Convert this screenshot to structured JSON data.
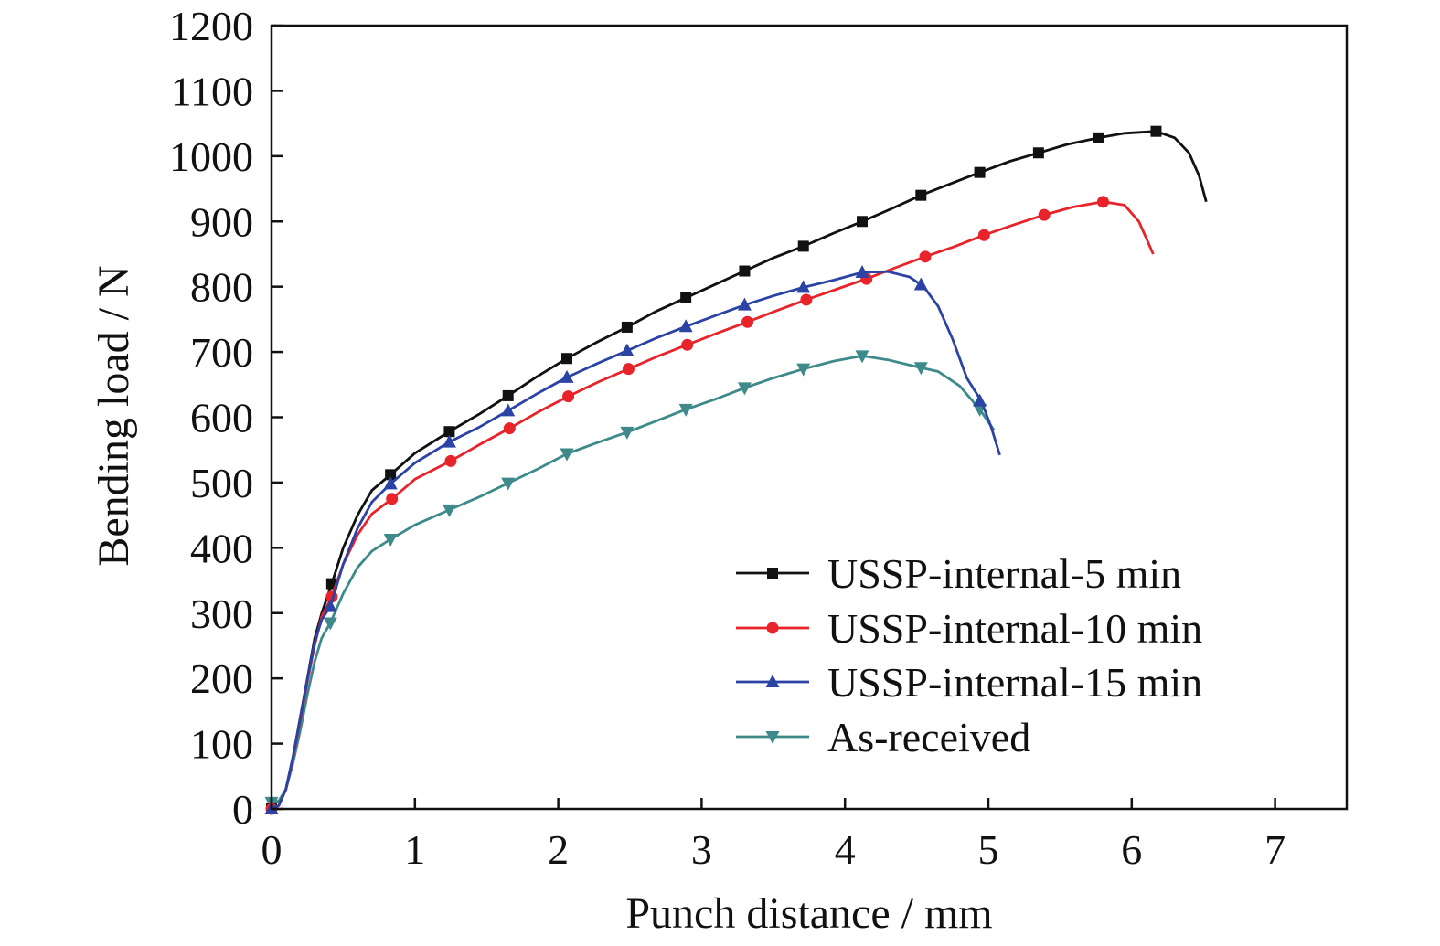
{
  "chart_data": {
    "type": "line",
    "xlabel": "Punch distance / mm",
    "ylabel": "Bending load / N",
    "xlim": [
      0,
      7.5
    ],
    "ylim": [
      0,
      1200
    ],
    "xticks": [
      0,
      1,
      2,
      3,
      4,
      5,
      6,
      7
    ],
    "yticks": [
      0,
      100,
      200,
      300,
      400,
      500,
      600,
      700,
      800,
      900,
      1000,
      1100,
      1200
    ],
    "grid": false,
    "legend_position": "bottom-right",
    "series": [
      {
        "name": "USSP-internal-5 min",
        "color": "#111111",
        "marker": "square",
        "points": [
          [
            0,
            0
          ],
          [
            0.05,
            5
          ],
          [
            0.1,
            30
          ],
          [
            0.15,
            80
          ],
          [
            0.2,
            140
          ],
          [
            0.25,
            200
          ],
          [
            0.3,
            260
          ],
          [
            0.35,
            300
          ],
          [
            0.42,
            345
          ],
          [
            0.5,
            400
          ],
          [
            0.6,
            450
          ],
          [
            0.7,
            488
          ],
          [
            0.83,
            512
          ],
          [
            1.0,
            545
          ],
          [
            1.24,
            578
          ],
          [
            1.45,
            605
          ],
          [
            1.65,
            633
          ],
          [
            1.85,
            662
          ],
          [
            2.06,
            690
          ],
          [
            2.27,
            715
          ],
          [
            2.48,
            738
          ],
          [
            2.68,
            762
          ],
          [
            2.89,
            783
          ],
          [
            3.1,
            804
          ],
          [
            3.3,
            824
          ],
          [
            3.5,
            844
          ],
          [
            3.71,
            862
          ],
          [
            3.92,
            882
          ],
          [
            4.12,
            900
          ],
          [
            4.33,
            920
          ],
          [
            4.53,
            940
          ],
          [
            4.74,
            958
          ],
          [
            4.94,
            975
          ],
          [
            5.15,
            992
          ],
          [
            5.35,
            1005
          ],
          [
            5.55,
            1018
          ],
          [
            5.77,
            1028
          ],
          [
            5.95,
            1035
          ],
          [
            6.17,
            1038
          ],
          [
            6.3,
            1028
          ],
          [
            6.4,
            1005
          ],
          [
            6.47,
            970
          ],
          [
            6.52,
            930
          ]
        ],
        "markers": [
          [
            0,
            0
          ],
          [
            0.42,
            345
          ],
          [
            0.83,
            512
          ],
          [
            1.24,
            578
          ],
          [
            1.65,
            633
          ],
          [
            2.06,
            690
          ],
          [
            2.48,
            738
          ],
          [
            2.89,
            783
          ],
          [
            3.3,
            824
          ],
          [
            3.71,
            862
          ],
          [
            4.12,
            900
          ],
          [
            4.53,
            940
          ],
          [
            4.94,
            975
          ],
          [
            5.35,
            1005
          ],
          [
            5.77,
            1028
          ],
          [
            6.17,
            1038
          ]
        ]
      },
      {
        "name": "USSP-internal-10 min",
        "color": "#e8232a",
        "marker": "circle",
        "points": [
          [
            0,
            0
          ],
          [
            0.05,
            5
          ],
          [
            0.1,
            30
          ],
          [
            0.15,
            78
          ],
          [
            0.2,
            135
          ],
          [
            0.25,
            195
          ],
          [
            0.3,
            250
          ],
          [
            0.35,
            295
          ],
          [
            0.42,
            325
          ],
          [
            0.5,
            375
          ],
          [
            0.6,
            420
          ],
          [
            0.7,
            452
          ],
          [
            0.84,
            475
          ],
          [
            1.0,
            505
          ],
          [
            1.25,
            533
          ],
          [
            1.45,
            558
          ],
          [
            1.66,
            583
          ],
          [
            1.86,
            608
          ],
          [
            2.07,
            632
          ],
          [
            2.28,
            654
          ],
          [
            2.49,
            674
          ],
          [
            2.69,
            693
          ],
          [
            2.9,
            711
          ],
          [
            3.11,
            729
          ],
          [
            3.32,
            746
          ],
          [
            3.52,
            763
          ],
          [
            3.73,
            780
          ],
          [
            3.94,
            796
          ],
          [
            4.15,
            812
          ],
          [
            4.35,
            829
          ],
          [
            4.56,
            846
          ],
          [
            4.77,
            862
          ],
          [
            4.97,
            879
          ],
          [
            5.18,
            895
          ],
          [
            5.39,
            910
          ],
          [
            5.59,
            922
          ],
          [
            5.8,
            930
          ],
          [
            5.95,
            925
          ],
          [
            6.05,
            900
          ],
          [
            6.1,
            875
          ],
          [
            6.15,
            850
          ]
        ],
        "markers": [
          [
            0,
            0
          ],
          [
            0.42,
            325
          ],
          [
            0.84,
            475
          ],
          [
            1.25,
            533
          ],
          [
            1.66,
            583
          ],
          [
            2.07,
            632
          ],
          [
            2.49,
            674
          ],
          [
            2.9,
            711
          ],
          [
            3.32,
            746
          ],
          [
            3.73,
            780
          ],
          [
            4.15,
            812
          ],
          [
            4.56,
            846
          ],
          [
            4.97,
            879
          ],
          [
            5.39,
            910
          ],
          [
            5.8,
            930
          ]
        ]
      },
      {
        "name": "USSP-internal-15 min",
        "color": "#2c43a6",
        "marker": "triangle-up",
        "points": [
          [
            0,
            0
          ],
          [
            0.05,
            5
          ],
          [
            0.1,
            30
          ],
          [
            0.15,
            80
          ],
          [
            0.2,
            138
          ],
          [
            0.25,
            198
          ],
          [
            0.3,
            255
          ],
          [
            0.35,
            290
          ],
          [
            0.41,
            310
          ],
          [
            0.5,
            375
          ],
          [
            0.6,
            430
          ],
          [
            0.7,
            470
          ],
          [
            0.83,
            498
          ],
          [
            1.0,
            530
          ],
          [
            1.24,
            562
          ],
          [
            1.45,
            585
          ],
          [
            1.65,
            610
          ],
          [
            1.86,
            637
          ],
          [
            2.06,
            661
          ],
          [
            2.27,
            682
          ],
          [
            2.48,
            702
          ],
          [
            2.68,
            721
          ],
          [
            2.89,
            739
          ],
          [
            3.1,
            756
          ],
          [
            3.3,
            772
          ],
          [
            3.5,
            786
          ],
          [
            3.71,
            799
          ],
          [
            3.92,
            810
          ],
          [
            4.12,
            822
          ],
          [
            4.3,
            823
          ],
          [
            4.45,
            815
          ],
          [
            4.55,
            800
          ],
          [
            4.65,
            770
          ],
          [
            4.75,
            720
          ],
          [
            4.85,
            660
          ],
          [
            4.95,
            625
          ],
          [
            5.02,
            585
          ],
          [
            5.08,
            542
          ]
        ],
        "markers": [
          [
            0,
            0
          ],
          [
            0.41,
            310
          ],
          [
            0.83,
            498
          ],
          [
            1.24,
            562
          ],
          [
            1.65,
            610
          ],
          [
            2.06,
            661
          ],
          [
            2.48,
            702
          ],
          [
            2.89,
            739
          ],
          [
            3.3,
            772
          ],
          [
            3.71,
            799
          ],
          [
            4.12,
            822
          ],
          [
            4.53,
            803
          ],
          [
            4.94,
            625
          ]
        ]
      },
      {
        "name": "As-received",
        "color": "#3e8a8a",
        "marker": "triangle-down",
        "points": [
          [
            0,
            10
          ],
          [
            0.05,
            12
          ],
          [
            0.1,
            30
          ],
          [
            0.15,
            70
          ],
          [
            0.2,
            120
          ],
          [
            0.25,
            175
          ],
          [
            0.3,
            225
          ],
          [
            0.35,
            262
          ],
          [
            0.41,
            285
          ],
          [
            0.5,
            330
          ],
          [
            0.6,
            370
          ],
          [
            0.7,
            395
          ],
          [
            0.83,
            413
          ],
          [
            1.0,
            435
          ],
          [
            1.24,
            458
          ],
          [
            1.45,
            478
          ],
          [
            1.65,
            499
          ],
          [
            1.86,
            521
          ],
          [
            2.06,
            544
          ],
          [
            2.27,
            561
          ],
          [
            2.48,
            577
          ],
          [
            2.68,
            594
          ],
          [
            2.89,
            612
          ],
          [
            3.1,
            628
          ],
          [
            3.3,
            645
          ],
          [
            3.5,
            660
          ],
          [
            3.71,
            674
          ],
          [
            3.92,
            686
          ],
          [
            4.12,
            694
          ],
          [
            4.3,
            688
          ],
          [
            4.45,
            680
          ],
          [
            4.53,
            676
          ],
          [
            4.65,
            670
          ],
          [
            4.8,
            648
          ],
          [
            4.94,
            612
          ],
          [
            5.04,
            580
          ]
        ],
        "markers": [
          [
            0,
            10
          ],
          [
            0.41,
            285
          ],
          [
            0.83,
            413
          ],
          [
            1.24,
            458
          ],
          [
            1.65,
            499
          ],
          [
            2.06,
            544
          ],
          [
            2.48,
            577
          ],
          [
            2.89,
            612
          ],
          [
            3.3,
            645
          ],
          [
            3.71,
            674
          ],
          [
            4.12,
            694
          ],
          [
            4.53,
            676
          ],
          [
            4.94,
            612
          ]
        ]
      }
    ]
  }
}
